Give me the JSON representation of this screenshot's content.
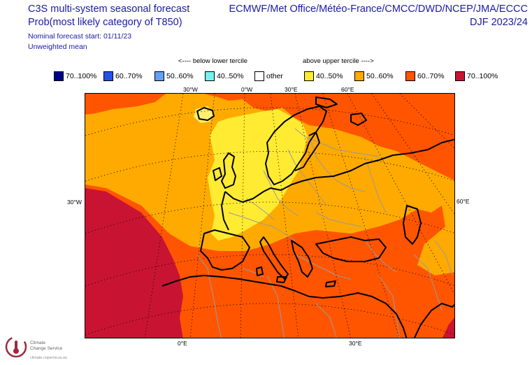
{
  "header": {
    "title_left_1": "C3S multi-system seasonal forecast",
    "title_left_2": "Prob(most likely category of T850)",
    "title_right_1": "ECMWF/Met Office/Météo-France/CMCC/DWD/NCEP/JMA/ECCC",
    "title_right_2": "DJF 2023/24",
    "nominal_start": "Nominal forecast start: 01/11/23",
    "weighting": "Unweighted mean"
  },
  "legend": {
    "below_label": "<---- below lower tercile",
    "above_label": "above upper tercile ---->",
    "items": [
      {
        "label": "70..100%",
        "color": "#00008c"
      },
      {
        "label": "60..70%",
        "color": "#2850e6"
      },
      {
        "label": "50..60%",
        "color": "#64a0f0"
      },
      {
        "label": "40..50%",
        "color": "#78f0f0"
      },
      {
        "label": "other",
        "color": "#ffffff"
      },
      {
        "label": "40..50%",
        "color": "#ffeb32"
      },
      {
        "label": "50..60%",
        "color": "#ffaa00"
      },
      {
        "label": "60..70%",
        "color": "#ff5500"
      },
      {
        "label": "70..100%",
        "color": "#c81432"
      }
    ]
  },
  "map": {
    "lon_labels_top": [
      "30°W",
      "0°W",
      "30°E",
      "60°E"
    ],
    "lat_label_left": "30°W",
    "lat_label_right": "60°E",
    "lon_labels_bottom": [
      "0°E",
      "30°E"
    ],
    "colors": {
      "above_70_100": "#c81432",
      "above_60_70": "#ff5500",
      "above_50_60": "#ffaa00",
      "above_40_50": "#ffeb32",
      "above_40_50_light": "#ffef70"
    }
  },
  "logo": {
    "name_line1": "Climate",
    "name_line2": "Change Service",
    "url": "climate.copernicus.eu"
  }
}
